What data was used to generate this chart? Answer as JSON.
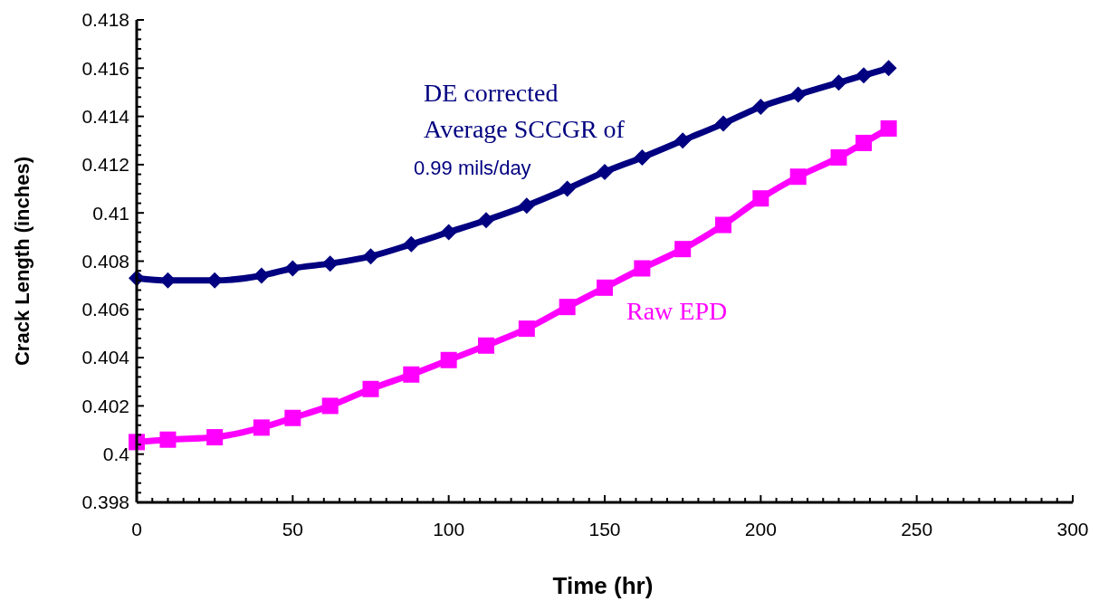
{
  "chart_data": {
    "type": "line",
    "xlabel": "Time (hr)",
    "ylabel": "Crack Length (inches)",
    "annotations": [
      "Average SCCGR of",
      "0.99 mils/day"
    ],
    "x": [
      0,
      10,
      25,
      40,
      50,
      62,
      75,
      88,
      100,
      112,
      125,
      138,
      150,
      162,
      175,
      188,
      200,
      212,
      225,
      233,
      241
    ],
    "series": [
      {
        "name": "DE corrected",
        "color": "#000080",
        "marker": "diamond",
        "values": [
          0.4073,
          0.4072,
          0.4072,
          0.4074,
          0.4077,
          0.4079,
          0.4082,
          0.4087,
          0.4092,
          0.4097,
          0.4103,
          0.411,
          0.4117,
          0.4123,
          0.413,
          0.4137,
          0.4144,
          0.4149,
          0.4154,
          0.4157,
          0.416
        ]
      },
      {
        "name": "Raw EPD",
        "color": "#ff00ff",
        "marker": "square",
        "values": [
          0.4005,
          0.4006,
          0.4007,
          0.4011,
          0.4015,
          0.402,
          0.4027,
          0.4033,
          0.4039,
          0.4045,
          0.4052,
          0.4061,
          0.4069,
          0.4077,
          0.4085,
          0.4095,
          0.4106,
          0.4115,
          0.4123,
          0.4129,
          0.4135
        ]
      }
    ],
    "xlim": [
      0,
      300
    ],
    "ylim": [
      0.398,
      0.418
    ],
    "xticks": [
      0,
      {
        "value": 5,
        "label": null
      },
      {
        "value": 10,
        "label": null
      },
      {
        "value": 15,
        "label": null
      },
      {
        "value": 20,
        "label": null
      },
      {
        "value": 25,
        "label": null
      },
      {
        "value": 30,
        "label": null
      },
      {
        "value": 35,
        "label": null
      },
      {
        "value": 40,
        "label": null
      },
      {
        "value": 45,
        "label": null
      },
      50,
      {
        "value": 55,
        "label": null
      },
      {
        "value": 60,
        "label": null
      },
      {
        "value": 65,
        "label": null
      },
      {
        "value": 70,
        "label": null
      },
      {
        "value": 75,
        "label": null
      },
      {
        "value": 80,
        "label": null
      },
      {
        "value": 85,
        "label": null
      },
      {
        "value": 90,
        "label": null
      },
      {
        "value": 95,
        "label": null
      },
      100,
      {
        "value": 105,
        "label": null
      },
      {
        "value": 110,
        "label": null
      },
      {
        "value": 115,
        "label": null
      },
      {
        "value": 120,
        "label": null
      },
      {
        "value": 125,
        "label": null
      },
      {
        "value": 130,
        "label": null
      },
      {
        "value": 135,
        "label": null
      },
      {
        "value": 140,
        "label": null
      },
      {
        "value": 145,
        "label": null
      },
      150,
      {
        "value": 155,
        "label": null
      },
      {
        "value": 160,
        "label": null
      },
      {
        "value": 165,
        "label": null
      },
      {
        "value": 170,
        "label": null
      },
      {
        "value": 175,
        "label": null
      },
      {
        "value": 180,
        "label": null
      },
      {
        "value": 185,
        "label": null
      },
      {
        "value": 190,
        "label": null
      },
      {
        "value": 195,
        "label": null
      },
      200,
      {
        "value": 205,
        "label": null
      },
      {
        "value": 210,
        "label": null
      },
      {
        "value": 215,
        "label": null
      },
      {
        "value": 220,
        "label": null
      },
      {
        "value": 225,
        "label": null
      },
      {
        "value": 230,
        "label": null
      },
      {
        "value": 235,
        "label": null
      },
      {
        "value": 240,
        "label": null
      },
      {
        "value": 245,
        "label": null
      },
      250,
      {
        "value": 255,
        "label": null
      },
      {
        "value": 260,
        "label": null
      },
      {
        "value": 265,
        "label": null
      },
      {
        "value": 270,
        "label": null
      },
      {
        "value": 275,
        "label": null
      },
      {
        "value": 280,
        "label": null
      },
      {
        "value": 285,
        "label": null
      },
      {
        "value": 290,
        "label": null
      },
      {
        "value": 295,
        "label": null
      },
      300
    ],
    "yticks": [
      0.398,
      {
        "value": 0.3984,
        "label": null
      },
      {
        "value": 0.3988,
        "label": null
      },
      {
        "value": 0.3992,
        "label": null
      },
      {
        "value": 0.3996,
        "label": null
      },
      0.4,
      {
        "value": 0.4004,
        "label": null
      },
      {
        "value": 0.4008,
        "label": null
      },
      {
        "value": 0.4012,
        "label": null
      },
      {
        "value": 0.4016,
        "label": null
      },
      0.402,
      {
        "value": 0.4024,
        "label": null
      },
      {
        "value": 0.4028,
        "label": null
      },
      {
        "value": 0.4032,
        "label": null
      },
      {
        "value": 0.4036,
        "label": null
      },
      0.404,
      {
        "value": 0.4044,
        "label": null
      },
      {
        "value": 0.4048,
        "label": null
      },
      {
        "value": 0.4052,
        "label": null
      },
      {
        "value": 0.4056,
        "label": null
      },
      0.406,
      {
        "value": 0.4064,
        "label": null
      },
      {
        "value": 0.4068,
        "label": null
      },
      {
        "value": 0.4072,
        "label": null
      },
      {
        "value": 0.4076,
        "label": null
      },
      0.408,
      {
        "value": 0.4084,
        "label": null
      },
      {
        "value": 0.4088,
        "label": null
      },
      {
        "value": 0.4092,
        "label": null
      },
      {
        "value": 0.4096,
        "label": null
      },
      0.41,
      {
        "value": 0.4104,
        "label": null
      },
      {
        "value": 0.4108,
        "label": null
      },
      {
        "value": 0.4112,
        "label": null
      },
      {
        "value": 0.4116,
        "label": null
      },
      0.412,
      {
        "value": 0.4124,
        "label": null
      },
      {
        "value": 0.4128,
        "label": null
      },
      {
        "value": 0.4132,
        "label": null
      },
      {
        "value": 0.4136,
        "label": null
      },
      0.414,
      {
        "value": 0.4144,
        "label": null
      },
      {
        "value": 0.4148,
        "label": null
      },
      {
        "value": 0.4152,
        "label": null
      },
      {
        "value": 0.4156,
        "label": null
      },
      0.416,
      {
        "value": 0.4164,
        "label": null
      },
      {
        "value": 0.4168,
        "label": null
      },
      {
        "value": 0.4172,
        "label": null
      },
      {
        "value": 0.4176,
        "label": null
      },
      0.418
    ]
  }
}
